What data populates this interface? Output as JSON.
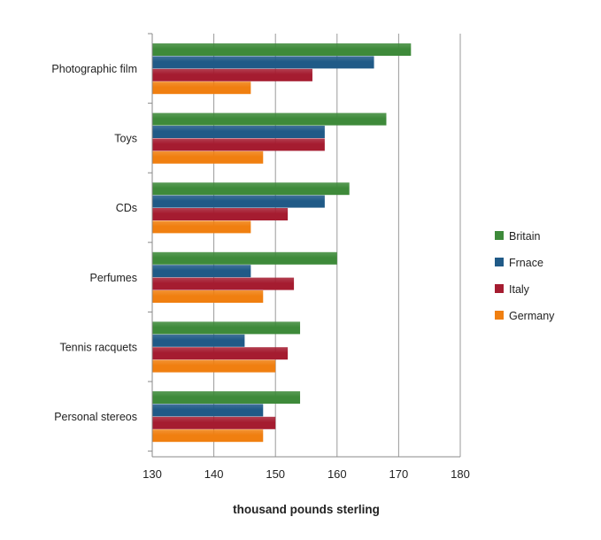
{
  "chart_data": {
    "type": "bar",
    "orientation": "horizontal",
    "title": "",
    "xlabel": "thousand pounds sterling",
    "ylabel": "",
    "xlim": [
      130,
      180
    ],
    "x_ticks": [
      130,
      140,
      150,
      160,
      170,
      180
    ],
    "grid": "vertical-major",
    "legend_position": "right",
    "categories": [
      "Photographic film",
      "Toys",
      "CDs",
      "Perfumes",
      "Tennis racquets",
      "Personal stereos"
    ],
    "series": [
      {
        "name": "Britain",
        "color": "#3e8a3a",
        "values": [
          172,
          168,
          162,
          160,
          154,
          154
        ]
      },
      {
        "name": "Frnace",
        "color": "#205a87",
        "values": [
          166,
          158,
          158,
          146,
          145,
          148
        ]
      },
      {
        "name": "Italy",
        "color": "#a51c30",
        "values": [
          156,
          158,
          152,
          153,
          152,
          150
        ]
      },
      {
        "name": "Germany",
        "color": "#f07f10",
        "values": [
          146,
          148,
          146,
          148,
          150,
          148
        ]
      }
    ]
  }
}
